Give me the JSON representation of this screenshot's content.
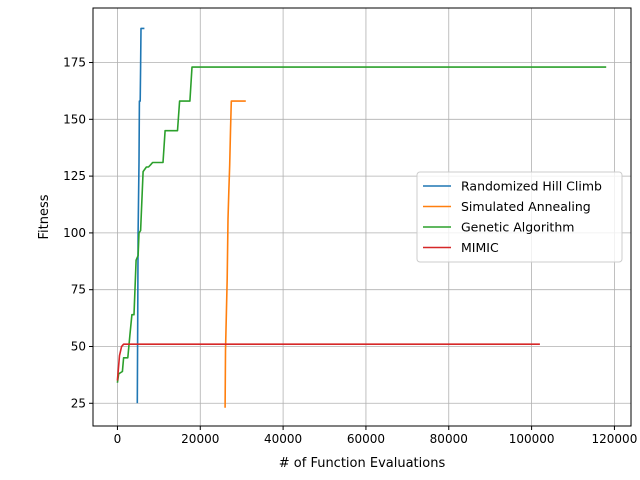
{
  "chart_data": {
    "type": "line",
    "title": "",
    "xlabel": "# of Function Evaluations",
    "ylabel": "Fitness",
    "xlim": [
      -5900,
      124000
    ],
    "ylim": [
      15,
      199
    ],
    "xticks": [
      0,
      20000,
      40000,
      60000,
      80000,
      100000,
      120000
    ],
    "xtick_labels": [
      "0",
      "20000",
      "40000",
      "60000",
      "80000",
      "100000",
      "120000"
    ],
    "yticks": [
      25,
      50,
      75,
      100,
      125,
      150,
      175
    ],
    "ytick_labels": [
      "25",
      "50",
      "75",
      "100",
      "125",
      "150",
      "175"
    ],
    "grid": true,
    "legend_position": "center-right",
    "series": [
      {
        "name": "Randomized Hill Climb",
        "color": "#1f77b4",
        "points": [
          [
            4800,
            25
          ],
          [
            4900,
            60
          ],
          [
            5000,
            100
          ],
          [
            5200,
            131
          ],
          [
            5300,
            158
          ],
          [
            5500,
            158
          ],
          [
            5600,
            173
          ],
          [
            5700,
            190
          ],
          [
            6500,
            190
          ]
        ]
      },
      {
        "name": "Simulated Annealing",
        "color": "#ff7f0e",
        "points": [
          [
            26000,
            23
          ],
          [
            26100,
            48
          ],
          [
            26300,
            65
          ],
          [
            26500,
            80
          ],
          [
            26700,
            106
          ],
          [
            26900,
            118
          ],
          [
            27100,
            130
          ],
          [
            27300,
            145
          ],
          [
            27500,
            158
          ],
          [
            31000,
            158
          ]
        ]
      },
      {
        "name": "Genetic Algorithm",
        "color": "#2ca02c",
        "points": [
          [
            0,
            34
          ],
          [
            300,
            38
          ],
          [
            1200,
            39
          ],
          [
            1500,
            45
          ],
          [
            2500,
            45
          ],
          [
            3000,
            55
          ],
          [
            3500,
            64
          ],
          [
            4000,
            64
          ],
          [
            4500,
            88
          ],
          [
            5000,
            90
          ],
          [
            5200,
            100
          ],
          [
            5600,
            101
          ],
          [
            6200,
            127
          ],
          [
            7000,
            129
          ],
          [
            7500,
            129
          ],
          [
            8000,
            130
          ],
          [
            8500,
            131
          ],
          [
            11000,
            131
          ],
          [
            11500,
            145
          ],
          [
            14500,
            145
          ],
          [
            15000,
            158
          ],
          [
            17500,
            158
          ],
          [
            18000,
            173
          ],
          [
            118000,
            173
          ]
        ]
      },
      {
        "name": "MIMIC",
        "color": "#d62728",
        "points": [
          [
            0,
            35
          ],
          [
            500,
            46
          ],
          [
            1000,
            50
          ],
          [
            1500,
            51
          ],
          [
            102000,
            51
          ]
        ]
      }
    ]
  }
}
